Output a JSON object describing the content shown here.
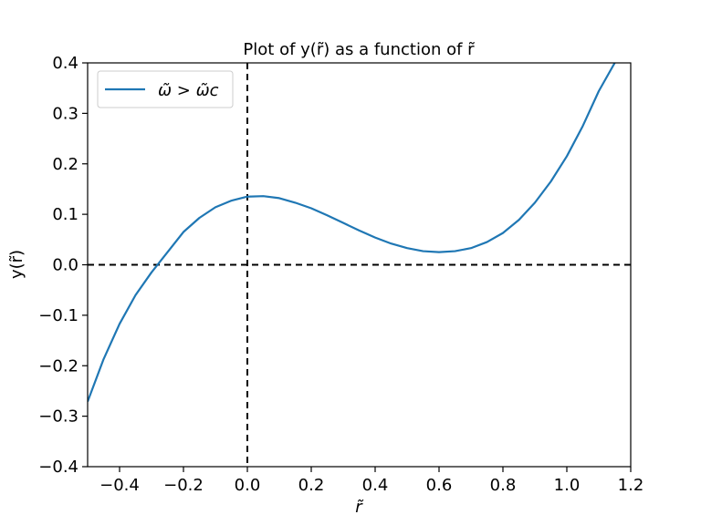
{
  "chart_data": {
    "type": "line",
    "title": "Plot of y(r̃) as a function of r̃",
    "xlabel": "r̃",
    "ylabel": "y(r̃)",
    "xlim": [
      -0.5,
      1.2
    ],
    "ylim": [
      -0.4,
      0.4
    ],
    "xticks": [
      -0.4,
      -0.2,
      0.0,
      0.2,
      0.4,
      0.6,
      0.8,
      1.0,
      1.2
    ],
    "xtick_labels": [
      "−0.4",
      "−0.2",
      "0.0",
      "0.2",
      "0.4",
      "0.6",
      "0.8",
      "1.0",
      "1.2"
    ],
    "yticks": [
      -0.4,
      -0.3,
      -0.2,
      -0.1,
      0.0,
      0.1,
      0.2,
      0.3,
      0.4
    ],
    "ytick_labels": [
      "−0.4",
      "−0.3",
      "−0.2",
      "−0.1",
      "0.0",
      "0.1",
      "0.2",
      "0.3",
      "0.4"
    ],
    "grid": false,
    "legend_position": "upper-left",
    "reference_lines": [
      {
        "orientation": "horizontal",
        "value": 0.0,
        "style": "dashed",
        "color": "#000000"
      },
      {
        "orientation": "vertical",
        "value": 0.0,
        "style": "dashed",
        "color": "#000000"
      }
    ],
    "series": [
      {
        "name": "ω̃ > ω̃c",
        "color": "#1f77b4",
        "x": [
          -0.5,
          -0.45,
          -0.4,
          -0.35,
          -0.3,
          -0.25,
          -0.2,
          -0.15,
          -0.1,
          -0.05,
          0.0,
          0.05,
          0.1,
          0.15,
          0.2,
          0.25,
          0.3,
          0.35,
          0.4,
          0.45,
          0.5,
          0.55,
          0.6,
          0.65,
          0.7,
          0.75,
          0.8,
          0.85,
          0.9,
          0.95,
          1.0,
          1.05,
          1.1,
          1.15
        ],
        "y": [
          -0.271,
          -0.187,
          -0.117,
          -0.06,
          -0.015,
          0.025,
          0.065,
          0.093,
          0.114,
          0.127,
          0.135,
          0.136,
          0.132,
          0.123,
          0.112,
          0.098,
          0.083,
          0.068,
          0.054,
          0.042,
          0.033,
          0.027,
          0.025,
          0.027,
          0.033,
          0.045,
          0.063,
          0.089,
          0.123,
          0.165,
          0.215,
          0.275,
          0.344,
          0.4
        ]
      }
    ]
  }
}
